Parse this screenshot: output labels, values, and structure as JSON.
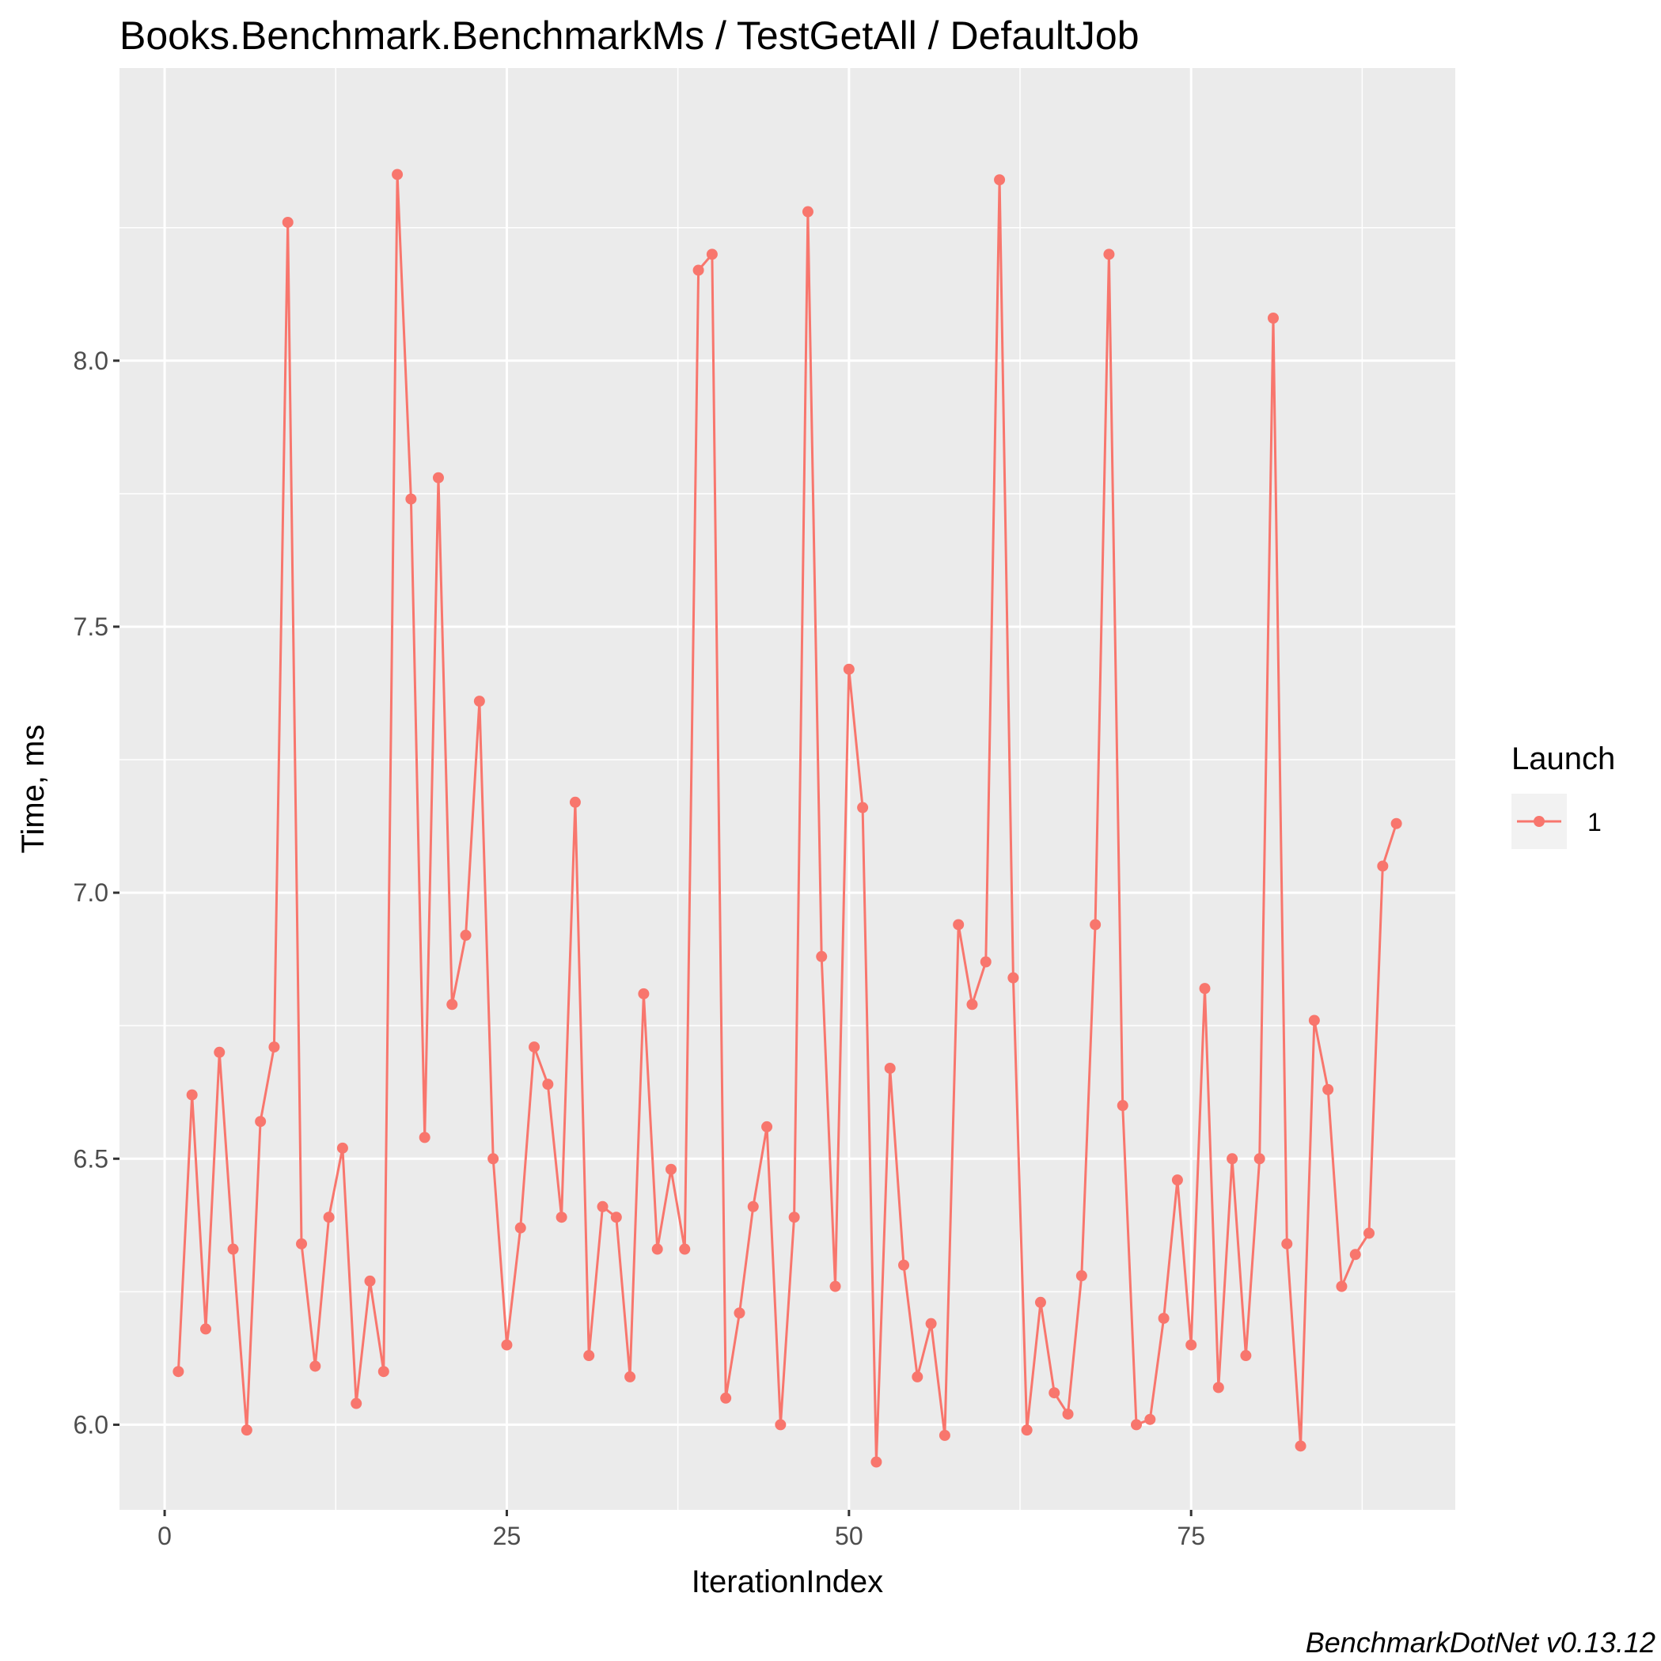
{
  "chart_data": {
    "type": "line",
    "title": "Books.Benchmark.BenchmarkMs / TestGetAll / DefaultJob",
    "xlabel": "IterationIndex",
    "ylabel": "Time, ms",
    "caption": "BenchmarkDotNet v0.13.12",
    "xlim": [
      -3.3,
      94.3
    ],
    "ylim": [
      5.84,
      8.55
    ],
    "x_ticks": [
      0,
      25,
      50,
      75
    ],
    "x_tick_labels": [
      "0",
      "25",
      "50",
      "75"
    ],
    "y_ticks": [
      6.0,
      6.5,
      7.0,
      7.5,
      8.0
    ],
    "y_tick_labels": [
      "6.0",
      "6.5",
      "7.0",
      "7.5",
      "8.0"
    ],
    "grid": true,
    "legend": {
      "title": "Launch",
      "position": "right"
    },
    "series": [
      {
        "name": "1",
        "color": "#F8766D",
        "x": [
          1,
          2,
          3,
          4,
          5,
          6,
          7,
          8,
          9,
          10,
          11,
          12,
          13,
          14,
          15,
          16,
          17,
          18,
          19,
          20,
          21,
          22,
          23,
          24,
          25,
          26,
          27,
          28,
          29,
          30,
          31,
          32,
          33,
          34,
          35,
          36,
          37,
          38,
          39,
          40,
          41,
          42,
          43,
          44,
          45,
          46,
          47,
          48,
          49,
          50,
          51,
          52,
          53,
          54,
          55,
          56,
          57,
          58,
          59,
          60,
          61,
          62,
          63,
          64,
          65,
          66,
          67,
          68,
          69,
          70,
          71,
          72,
          73,
          74,
          75,
          76,
          77,
          78,
          79,
          80,
          81,
          82,
          83,
          84,
          85,
          86,
          87,
          88,
          89,
          90
        ],
        "values": [
          6.1,
          6.62,
          6.18,
          6.7,
          6.33,
          5.99,
          6.57,
          6.71,
          8.26,
          6.34,
          6.11,
          6.39,
          6.52,
          6.04,
          6.27,
          6.1,
          8.35,
          7.74,
          6.54,
          7.78,
          6.79,
          6.92,
          7.36,
          6.5,
          6.15,
          6.37,
          6.71,
          6.64,
          6.39,
          7.17,
          6.13,
          6.41,
          6.39,
          6.09,
          6.81,
          6.33,
          6.48,
          6.33,
          8.17,
          8.2,
          6.05,
          6.21,
          6.41,
          6.56,
          6.0,
          6.39,
          8.28,
          6.88,
          6.26,
          7.42,
          7.16,
          5.93,
          6.67,
          6.3,
          6.09,
          6.19,
          5.98,
          6.94,
          6.79,
          6.87,
          8.34,
          6.84,
          5.99,
          6.23,
          6.06,
          6.02,
          6.28,
          6.94,
          8.2,
          6.6,
          6.0,
          6.01,
          6.2,
          6.46,
          6.15,
          6.82,
          6.07,
          6.5,
          6.13,
          6.5,
          8.08,
          6.34,
          5.96,
          6.76,
          6.63,
          6.26,
          6.32,
          6.36,
          7.05,
          7.13
        ]
      }
    ]
  }
}
